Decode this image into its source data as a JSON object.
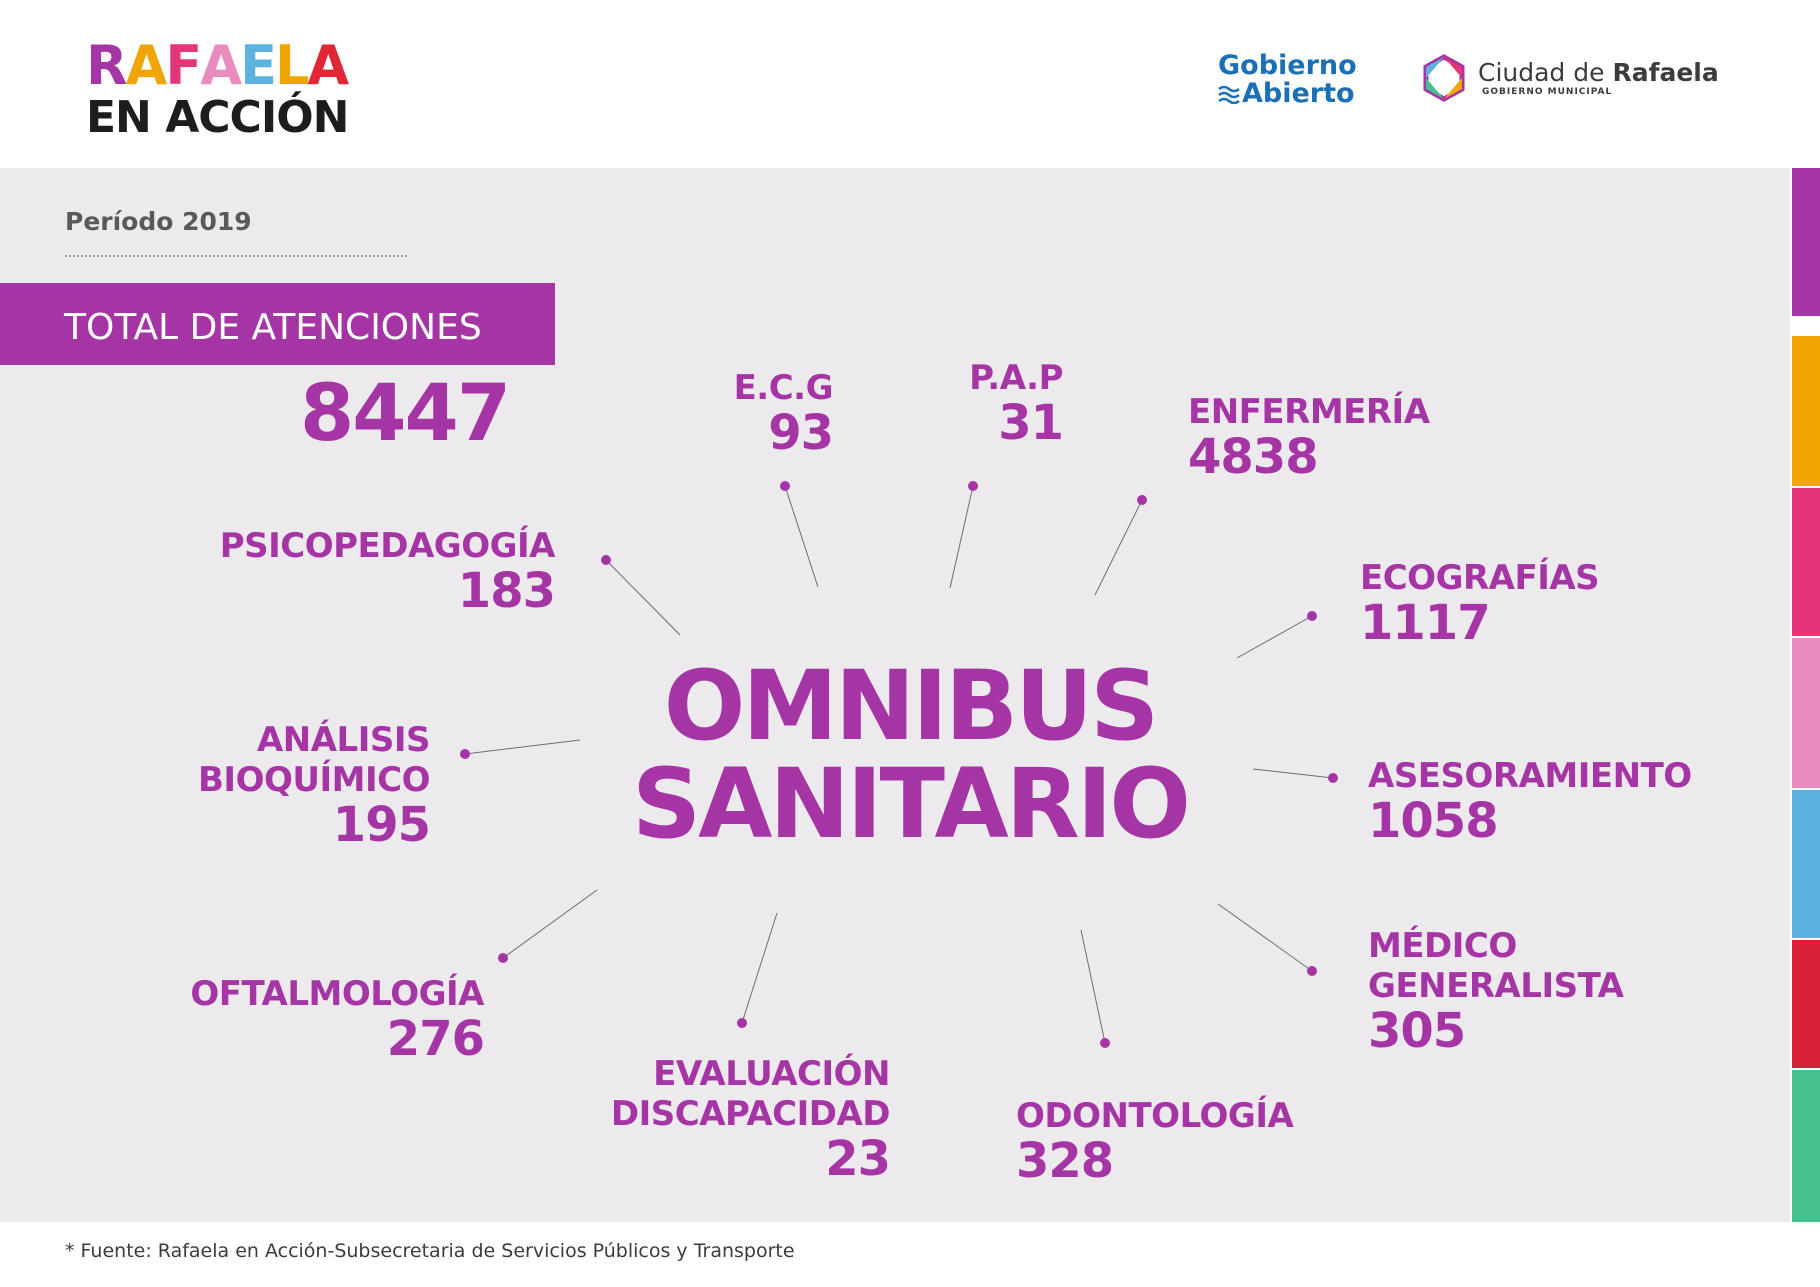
{
  "header": {
    "logo_rafaela": {
      "letters": [
        {
          "ch": "R",
          "color": "#a535a4"
        },
        {
          "ch": "A",
          "color": "#f0a500"
        },
        {
          "ch": "F",
          "color": "#e63478"
        },
        {
          "ch": "A",
          "color": "#e98bbd"
        },
        {
          "ch": "E",
          "color": "#5bb2de"
        },
        {
          "ch": "L",
          "color": "#f0a500"
        },
        {
          "ch": "A",
          "color": "#e32636"
        }
      ],
      "line2": "EN ACCIÓN"
    },
    "logo_gobierno": {
      "line1": "Gobierno",
      "line2": "Abierto"
    },
    "logo_ciudad": {
      "prefix": "Ciudad de ",
      "name": "Rafaela",
      "sub": "GOBIERNO MUNICIPAL"
    }
  },
  "periodo": "Período 2019",
  "total": {
    "label": "TOTAL DE ATENCIONES",
    "value": "8447"
  },
  "center": {
    "line1": "OMNIBUS",
    "line2": "SANITARIO"
  },
  "categories": [
    {
      "id": "ecg",
      "label": [
        "E.C.G"
      ],
      "value": "93"
    },
    {
      "id": "pap",
      "label": [
        "P.A.P"
      ],
      "value": "31"
    },
    {
      "id": "enfermeria",
      "label": [
        "ENFERMERÍA"
      ],
      "value": "4838"
    },
    {
      "id": "psicopedagogia",
      "label": [
        "PSICOPEDAGOGÍA"
      ],
      "value": "183"
    },
    {
      "id": "ecografias",
      "label": [
        "ECOGRAFÍAS"
      ],
      "value": "1117"
    },
    {
      "id": "analisis",
      "label": [
        "ANÁLISIS",
        "BIOQUÍMICO"
      ],
      "value": "195"
    },
    {
      "id": "asesoramiento",
      "label": [
        "ASESORAMIENTO"
      ],
      "value": "1058"
    },
    {
      "id": "oftalmologia",
      "label": [
        "OFTALMOLOGÍA"
      ],
      "value": "276"
    },
    {
      "id": "medico",
      "label": [
        "MÉDICO",
        "GENERALISTA"
      ],
      "value": "305"
    },
    {
      "id": "evaluacion",
      "label": [
        "EVALUACIÓN",
        "DISCAPACIDAD"
      ],
      "value": "23"
    },
    {
      "id": "odontologia",
      "label": [
        "ODONTOLOGÍA"
      ],
      "value": "328"
    }
  ],
  "sidebar_colors": [
    "#a535a4",
    "#f0a500",
    "#e63478",
    "#e98bbd",
    "#5bb2de",
    "#d9203a",
    "#45c08f"
  ],
  "accent_color": "#a535a4",
  "footer": "* Fuente: Rafaela en Acción-Subsecretaria de Servicios Públicos y Transporte"
}
